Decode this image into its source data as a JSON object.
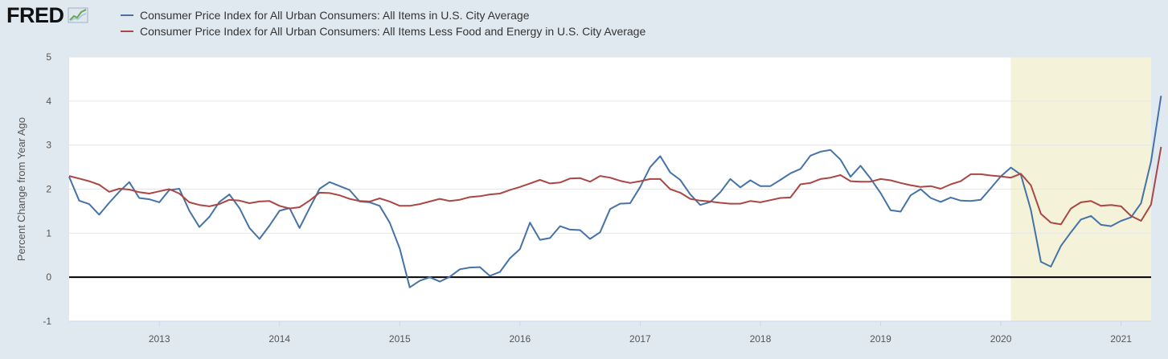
{
  "header": {
    "logo_text": "FRED",
    "logo_icon": "chart-line-icon"
  },
  "chart_data": {
    "type": "line",
    "title": "",
    "xlabel": "",
    "ylabel": "Percent Change from Year Ago",
    "ylim": [
      -1,
      5
    ],
    "yticks": [
      -1,
      0,
      1,
      2,
      3,
      4,
      5
    ],
    "xlim": [
      2012.25,
      2021.25
    ],
    "xticks": [
      2013,
      2014,
      2015,
      2016,
      2017,
      2018,
      2019,
      2020,
      2021
    ],
    "recession_shading": {
      "start": 2020.083,
      "end": 2021.25
    },
    "zero_line": 0,
    "grid": true,
    "series": [
      {
        "name": "Consumer Price Index for All Urban Consumers: All Items in U.S. City Average",
        "color": "#4572a7",
        "start": 2012.25,
        "step": 0.08333,
        "values": [
          2.28,
          1.74,
          1.66,
          1.42,
          1.69,
          1.94,
          2.16,
          1.8,
          1.77,
          1.7,
          1.98,
          2.01,
          1.51,
          1.14,
          1.37,
          1.71,
          1.88,
          1.57,
          1.12,
          0.87,
          1.17,
          1.51,
          1.57,
          1.12,
          1.57,
          2.01,
          2.16,
          2.07,
          1.98,
          1.72,
          1.7,
          1.62,
          1.24,
          0.65,
          -0.23,
          -0.08,
          0.0,
          -0.1,
          0.01,
          0.18,
          0.22,
          0.23,
          0.03,
          0.12,
          0.43,
          0.64,
          1.24,
          0.85,
          0.89,
          1.16,
          1.08,
          1.07,
          0.87,
          1.02,
          1.55,
          1.67,
          1.68,
          2.05,
          2.5,
          2.75,
          2.38,
          2.21,
          1.88,
          1.64,
          1.71,
          1.93,
          2.23,
          2.04,
          2.2,
          2.07,
          2.07,
          2.21,
          2.36,
          2.46,
          2.76,
          2.85,
          2.89,
          2.67,
          2.28,
          2.53,
          2.24,
          1.91,
          1.52,
          1.49,
          1.86,
          2.0,
          1.8,
          1.71,
          1.81,
          1.74,
          1.73,
          1.76,
          2.02,
          2.29,
          2.49,
          2.33,
          1.53,
          0.35,
          0.24,
          0.71,
          1.02,
          1.31,
          1.39,
          1.19,
          1.16,
          1.28,
          1.36,
          1.68,
          2.63,
          4.12
        ]
      },
      {
        "name": "Consumer Price Index for All Urban Consumers: All Items Less Food and Energy in U.S. City Average",
        "color": "#aa4643",
        "start": 2012.25,
        "step": 0.08333,
        "values": [
          2.3,
          2.24,
          2.18,
          2.1,
          1.94,
          2.01,
          1.99,
          1.93,
          1.9,
          1.95,
          2.0,
          1.9,
          1.7,
          1.64,
          1.61,
          1.66,
          1.76,
          1.74,
          1.68,
          1.72,
          1.73,
          1.62,
          1.56,
          1.59,
          1.74,
          1.92,
          1.91,
          1.86,
          1.78,
          1.73,
          1.72,
          1.79,
          1.72,
          1.62,
          1.62,
          1.66,
          1.72,
          1.78,
          1.73,
          1.76,
          1.82,
          1.84,
          1.88,
          1.9,
          1.98,
          2.05,
          2.13,
          2.21,
          2.13,
          2.15,
          2.24,
          2.25,
          2.17,
          2.3,
          2.26,
          2.19,
          2.14,
          2.18,
          2.23,
          2.23,
          2.0,
          1.92,
          1.78,
          1.74,
          1.72,
          1.69,
          1.67,
          1.67,
          1.73,
          1.7,
          1.75,
          1.8,
          1.81,
          2.11,
          2.14,
          2.23,
          2.26,
          2.32,
          2.18,
          2.17,
          2.17,
          2.23,
          2.2,
          2.14,
          2.09,
          2.05,
          2.07,
          2.01,
          2.11,
          2.18,
          2.34,
          2.34,
          2.31,
          2.29,
          2.26,
          2.35,
          2.09,
          1.44,
          1.24,
          1.2,
          1.56,
          1.7,
          1.73,
          1.62,
          1.64,
          1.61,
          1.39,
          1.28,
          1.65,
          2.96
        ]
      }
    ]
  }
}
